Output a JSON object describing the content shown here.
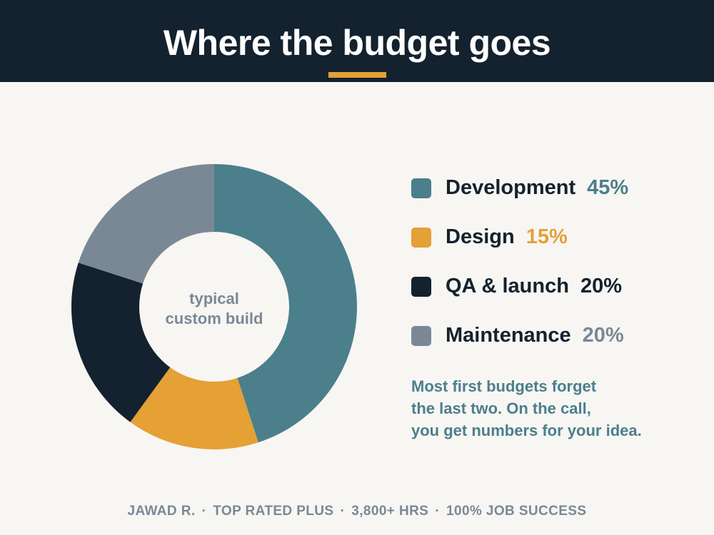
{
  "header": {
    "title": "Where the budget goes"
  },
  "colors": {
    "header_bg": "#14212e",
    "accent": "#e5a036",
    "development": "#4b7f8c",
    "design": "#e5a036",
    "qa_launch": "#14212e",
    "maintenance": "#7a8896",
    "background": "#f7f6f3"
  },
  "chart_data": {
    "type": "pie",
    "title": "Where the budget goes",
    "center_label": [
      "typical",
      "custom build"
    ],
    "categories": [
      "Development",
      "Design",
      "QA & launch",
      "Maintenance"
    ],
    "values": [
      45,
      15,
      20,
      20
    ],
    "value_labels": [
      "45%",
      "15%",
      "20%",
      "20%"
    ],
    "colors": [
      "#4b7f8c",
      "#e5a036",
      "#14212e",
      "#7a8896"
    ],
    "pct_colors": [
      "#4b7f8c",
      "#e5a036",
      "#14212e",
      "#7a8896"
    ],
    "legend_placement": "right"
  },
  "note": {
    "lines": [
      "Most first budgets forget",
      "the last two. On the call,",
      "you get numbers for your idea."
    ]
  },
  "footer": {
    "items": [
      "JAWAD R.",
      "TOP RATED PLUS",
      "3,800+ HRS",
      "100% JOB SUCCESS"
    ],
    "separator": "·"
  }
}
